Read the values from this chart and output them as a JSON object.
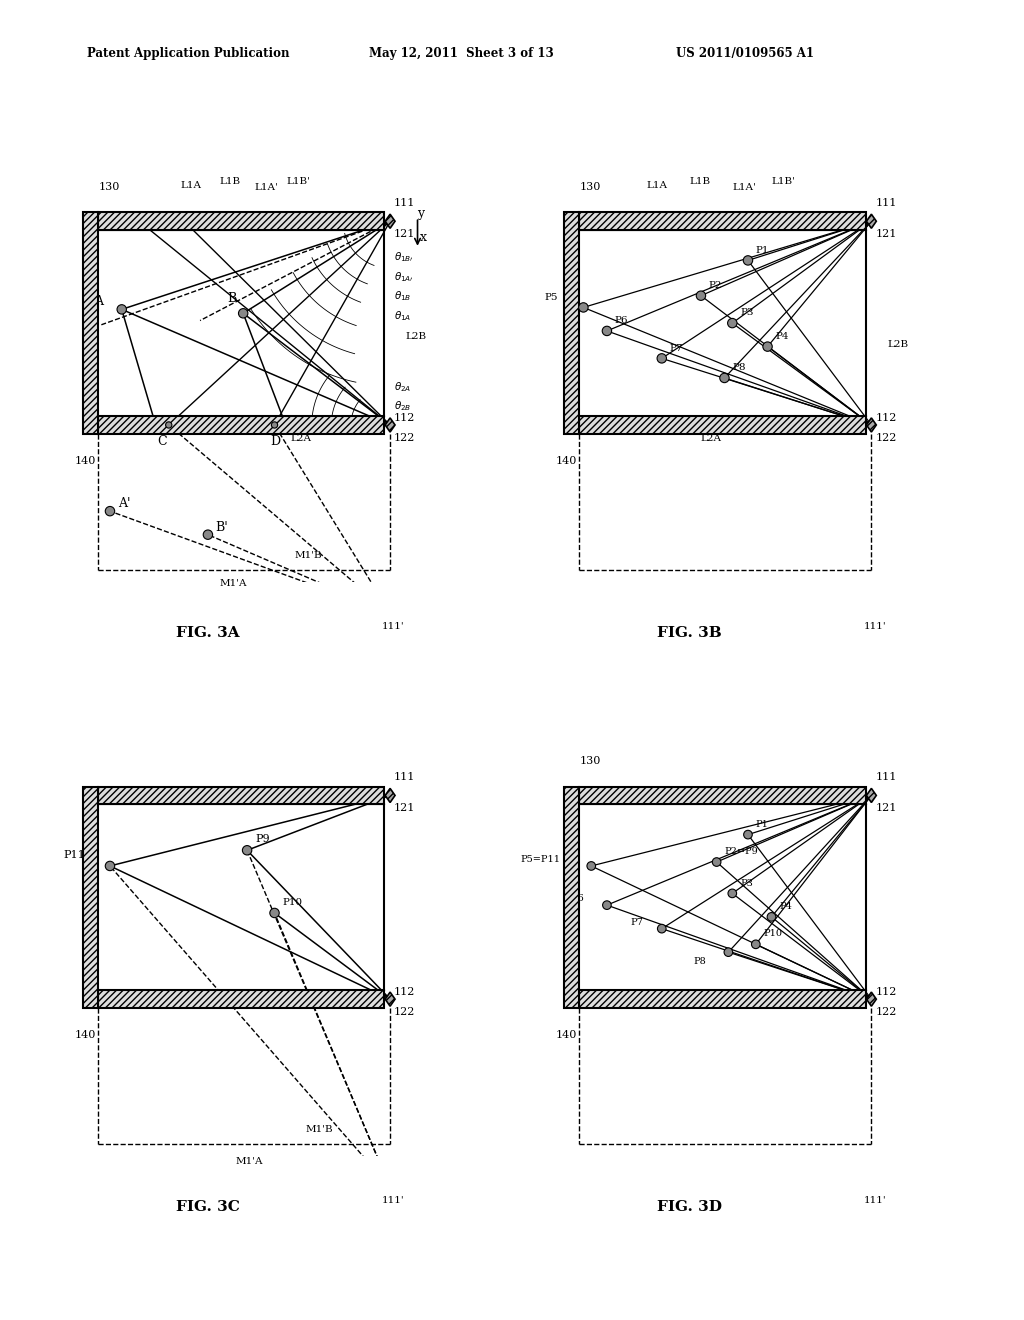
{
  "header_left": "Patent Application Publication",
  "header_center": "May 12, 2011  Sheet 3 of 13",
  "header_right": "US 2011/0109565 A1",
  "fig3a_title": "FIG. 3A",
  "fig3b_title": "FIG. 3B",
  "fig3c_title": "FIG. 3C",
  "fig3d_title": "FIG. 3D",
  "bg_color": "#ffffff"
}
